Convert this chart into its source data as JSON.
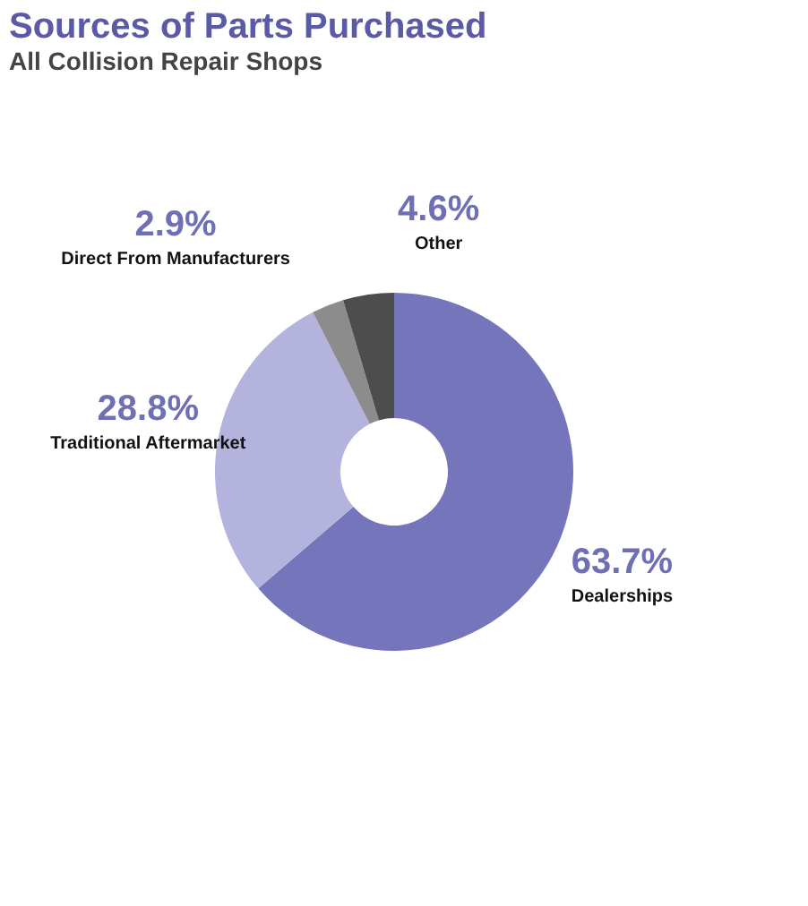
{
  "chart_data": {
    "type": "donut",
    "title": "Sources of Parts Purchased",
    "subtitle": "All Collision Repair Shops",
    "categories": [
      "Dealerships",
      "Traditional Aftermarket",
      "Direct From Manufacturers",
      "Other"
    ],
    "values": [
      63.7,
      28.8,
      2.9,
      4.6
    ],
    "colors": [
      "#7575bb",
      "#b3b3de",
      "#8c8c8c",
      "#4d4d4d"
    ],
    "value_labels": [
      "63.7%",
      "28.8%",
      "2.9%",
      "4.6%"
    ],
    "legend": false
  }
}
